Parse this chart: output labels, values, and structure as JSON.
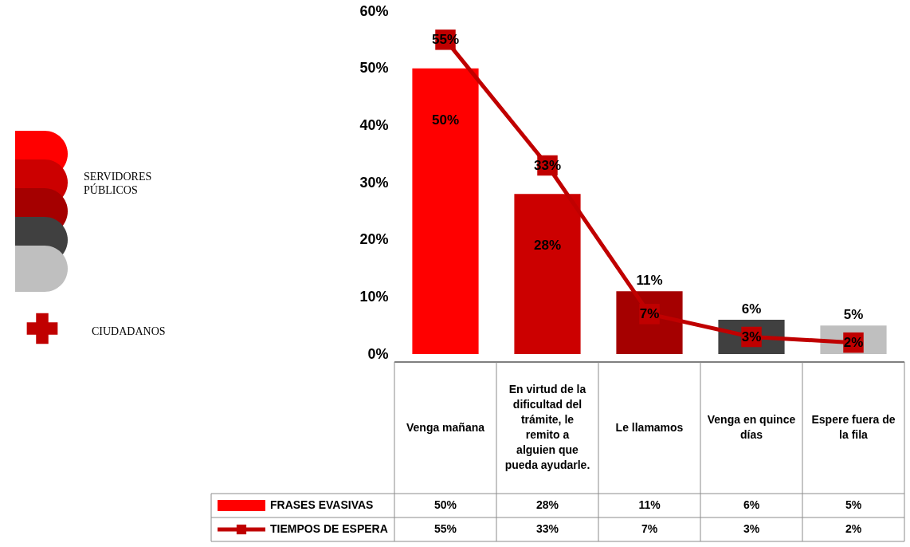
{
  "chart_data": {
    "type": "bar",
    "categories": [
      "Venga mañana",
      "En virtud de la dificultad del trámite, le remito a alguien que pueda ayudarle.",
      "Le llamamos",
      "Venga en quince días",
      "Espere fuera de la fila"
    ],
    "ylim": [
      0,
      60
    ],
    "yticks": [
      {
        "value": 0,
        "label": "0%"
      },
      {
        "value": 10,
        "label": "10%"
      },
      {
        "value": 20,
        "label": "20%"
      },
      {
        "value": 30,
        "label": "30%"
      },
      {
        "value": 40,
        "label": "40%"
      },
      {
        "value": 50,
        "label": "50%"
      },
      {
        "value": 60,
        "label": "60%"
      }
    ],
    "series": [
      {
        "name": "FRASES EVASIVAS",
        "colors": [
          "#ff0000",
          "#cc0000",
          "#a50000",
          "#404040",
          "#bfbfbf"
        ],
        "values": [
          50,
          28,
          11,
          6,
          5
        ],
        "value_labels": [
          "50%",
          "28%",
          "11%",
          "6%",
          "5%"
        ]
      },
      {
        "name": "TIEMPOS DE ESPERA",
        "type": "line",
        "color": "#c00000",
        "marker": "square",
        "values": [
          55,
          33,
          7,
          3,
          2
        ],
        "value_labels": [
          "55%",
          "33%",
          "7%",
          "3%",
          "2%"
        ]
      }
    ],
    "legend": "bottom",
    "annotations": [
      "SERVIDORES PÚBLICOS",
      "CIUDADANOS"
    ]
  }
}
